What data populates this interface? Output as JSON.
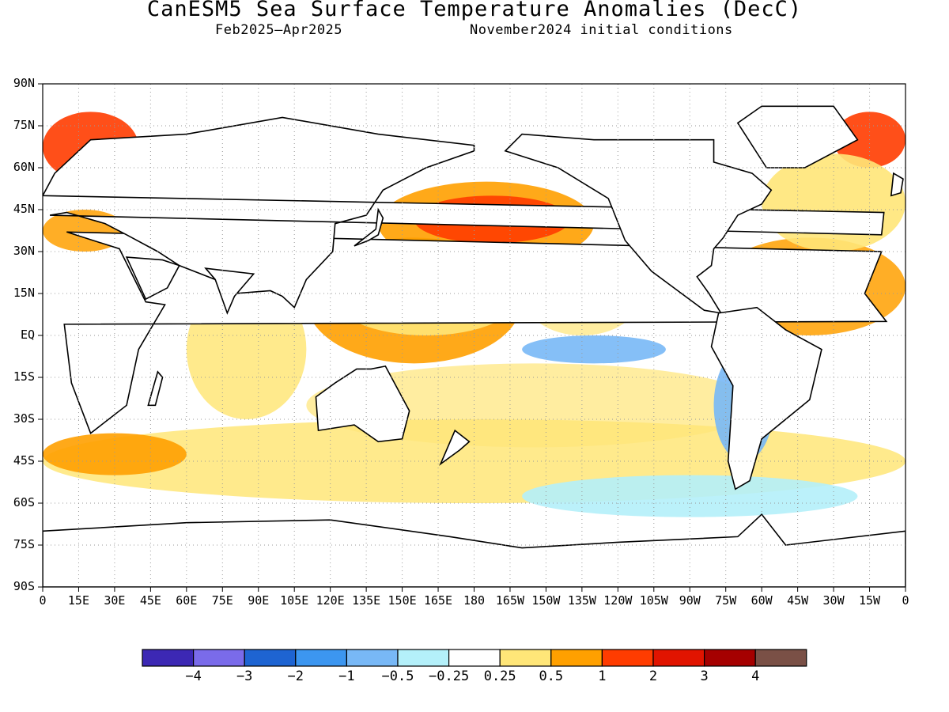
{
  "title": "CanESM5 Sea Surface Temperature Anomalies (DecC)",
  "subtitle_left": "Feb2025–Apr2025",
  "subtitle_right": "November2024 initial conditions",
  "lat_labels": [
    "90N",
    "75N",
    "60N",
    "45N",
    "30N",
    "15N",
    "EQ",
    "15S",
    "30S",
    "45S",
    "60S",
    "75S",
    "90S"
  ],
  "lon_labels": [
    "0",
    "15E",
    "30E",
    "45E",
    "60E",
    "75E",
    "90E",
    "105E",
    "120E",
    "135E",
    "150E",
    "165E",
    "180",
    "165W",
    "150W",
    "135W",
    "120W",
    "105W",
    "90W",
    "75W",
    "60W",
    "45W",
    "30W",
    "15W",
    "0"
  ],
  "colorbar": {
    "colors": [
      "#3c28b4",
      "#7a6bea",
      "#1e64d2",
      "#3c96f0",
      "#78b8f6",
      "#b4f0fa",
      "#ffffff",
      "#ffe678",
      "#ffa000",
      "#ff3c00",
      "#e11400",
      "#a50000",
      "#7a5046"
    ],
    "tick_labels": [
      "−4",
      "−3",
      "−2",
      "−1",
      "−0.5",
      "−0.25",
      "0.25",
      "0.5",
      "1",
      "2",
      "3",
      "4"
    ]
  },
  "anomaly_regions": [
    {
      "lon": [
        140,
        230
      ],
      "lat": [
        25,
        55
      ],
      "level": 2
    },
    {
      "lon": [
        155,
        220
      ],
      "lat": [
        33,
        50
      ],
      "level": 3
    },
    {
      "lon": [
        200,
        260
      ],
      "lat": [
        -10,
        0
      ],
      "level": -2
    },
    {
      "lon": [
        280,
        305
      ],
      "lat": [
        -45,
        -5
      ],
      "level": -2
    },
    {
      "lon": [
        300,
        360
      ],
      "lat": [
        30,
        65
      ],
      "level": 1
    },
    {
      "lon": [
        0,
        60
      ],
      "lat": [
        -50,
        -35
      ],
      "level": 2
    },
    {
      "lon": [
        200,
        340
      ],
      "lat": [
        -65,
        -50
      ],
      "level": -1
    },
    {
      "lon": [
        120,
        200
      ],
      "lat": [
        0,
        30
      ],
      "level": 1
    }
  ]
}
